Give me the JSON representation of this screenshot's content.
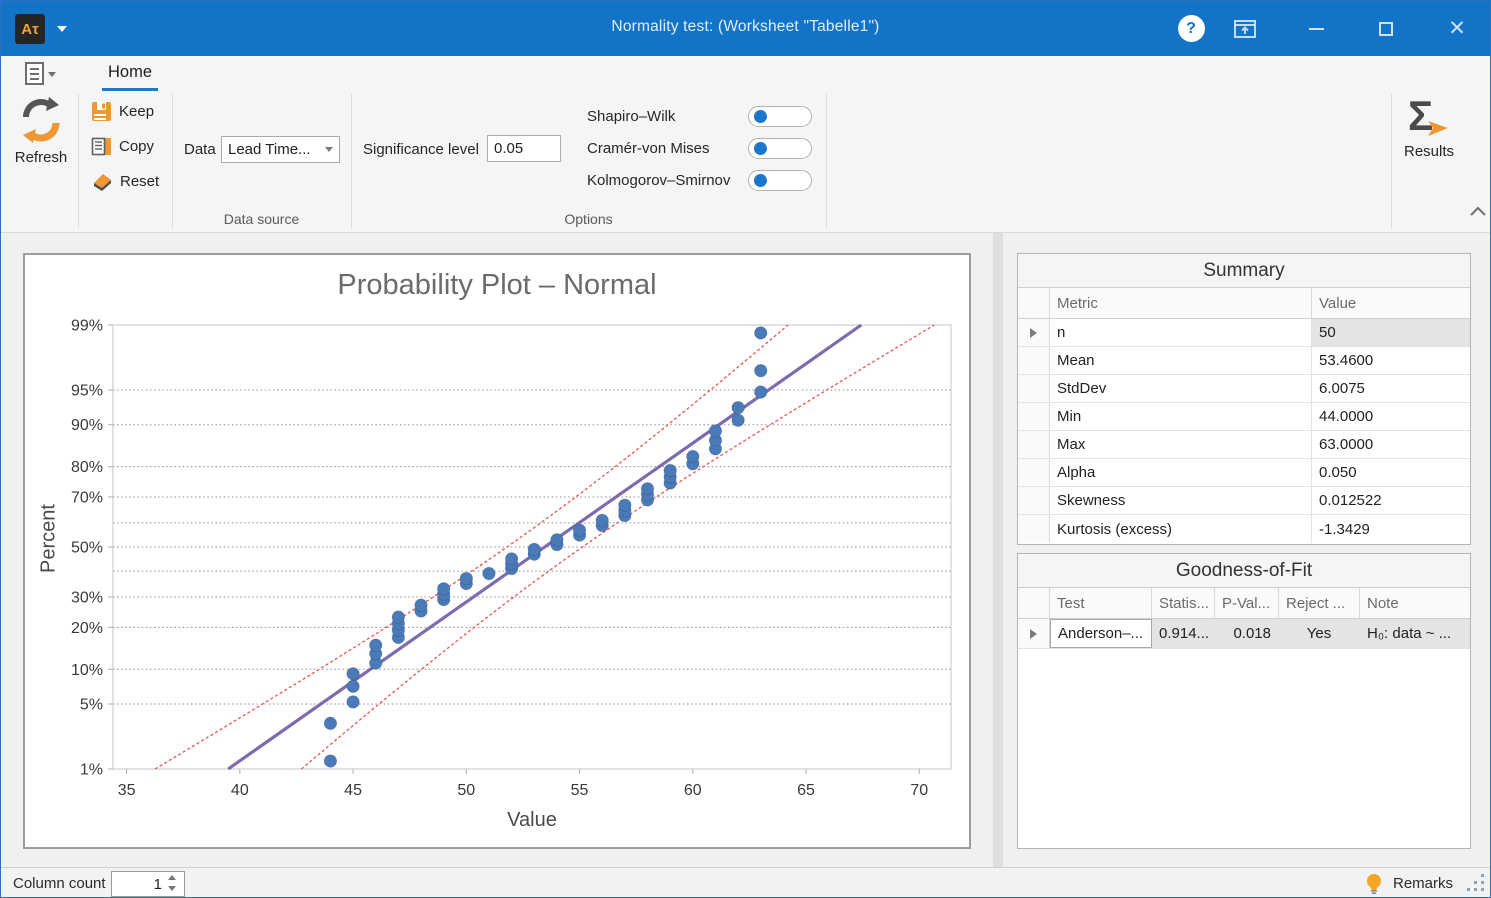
{
  "titlebar": {
    "app_icon_text": "Aτ",
    "title": "Normality test:  (Worksheet \"Tabelle1\")",
    "help_glyph": "?"
  },
  "ribbon": {
    "tab": "Home",
    "refresh_label": "Refresh",
    "keep_label": "Keep",
    "copy_label": "Copy",
    "reset_label": "Reset",
    "data_label": "Data",
    "data_value": "Lead Time...",
    "group_data_source": "Data source",
    "sig_label": "Significance level",
    "sig_value": "0.05",
    "toggles": [
      {
        "label": "Shapiro–Wilk",
        "knob": "left"
      },
      {
        "label": "Cramér-von Mises",
        "knob": "left"
      },
      {
        "label": "Kolmogorov–Smirnov",
        "knob": "left"
      }
    ],
    "group_options": "Options",
    "results_label": "Results"
  },
  "chart_data": {
    "type": "scatter",
    "title": "Probability Plot – Normal",
    "xlabel": "Value",
    "ylabel": "Percent",
    "x_ticks": [
      35,
      40,
      45,
      50,
      55,
      60,
      65,
      70
    ],
    "x_range": [
      34.4,
      71.4
    ],
    "y_scale": "probit",
    "y_range_percent": [
      1,
      99
    ],
    "y_tick_labels_percent": [
      1,
      5,
      10,
      20,
      30,
      50,
      70,
      80,
      90,
      95,
      99
    ],
    "y_gridlines_percent": [
      5,
      10,
      20,
      30,
      40,
      50,
      60,
      70,
      80,
      90,
      95
    ],
    "n": 50,
    "mean": 53.46,
    "stddev": 6.0075,
    "ci_level": 0.95,
    "plotting_position": "(i - 0.375) / (n + 0.25)",
    "values_sorted": [
      44,
      44,
      45,
      45,
      45,
      46,
      46,
      46,
      47,
      47,
      47,
      47,
      48,
      48,
      49,
      49,
      49,
      50,
      50,
      51,
      52,
      52,
      52,
      53,
      53,
      54,
      54,
      55,
      55,
      56,
      56,
      57,
      57,
      57,
      58,
      58,
      58,
      59,
      59,
      59,
      60,
      60,
      61,
      61,
      61,
      62,
      62,
      63,
      63,
      63
    ],
    "colors": {
      "points": "#4a7ab8",
      "fit_line": "#7d6bb0",
      "confidence_band": "#e8554e",
      "gridline": "#8f8f8f"
    }
  },
  "summary": {
    "title": "Summary",
    "columns": [
      "Metric",
      "Value"
    ],
    "rows": [
      {
        "metric": "n",
        "value": "50"
      },
      {
        "metric": "Mean",
        "value": "53.4600"
      },
      {
        "metric": "StdDev",
        "value": "6.0075"
      },
      {
        "metric": "Min",
        "value": "44.0000"
      },
      {
        "metric": "Max",
        "value": "63.0000"
      },
      {
        "metric": "Alpha",
        "value": "0.050"
      },
      {
        "metric": "Skewness",
        "value": "0.012522"
      },
      {
        "metric": "Kurtosis (excess)",
        "value": "-1.3429"
      }
    ]
  },
  "gof": {
    "title": "Goodness-of-Fit",
    "columns": [
      "Test",
      "Statis...",
      "P-Val...",
      "Reject ...",
      "Note"
    ],
    "row": {
      "test": "Anderson–...",
      "statistic": "0.914...",
      "p_value": "0.018",
      "reject": "Yes",
      "note": "H₀: data ~ ..."
    }
  },
  "statusbar": {
    "column_count_label": "Column count",
    "column_count_value": "1",
    "remarks_label": "Remarks"
  },
  "colors": {
    "titlebar": "#1273c7",
    "accent": "#1a7ad1",
    "toggle_dot": "#1b78c8",
    "icon_orange": "#ef9732"
  }
}
